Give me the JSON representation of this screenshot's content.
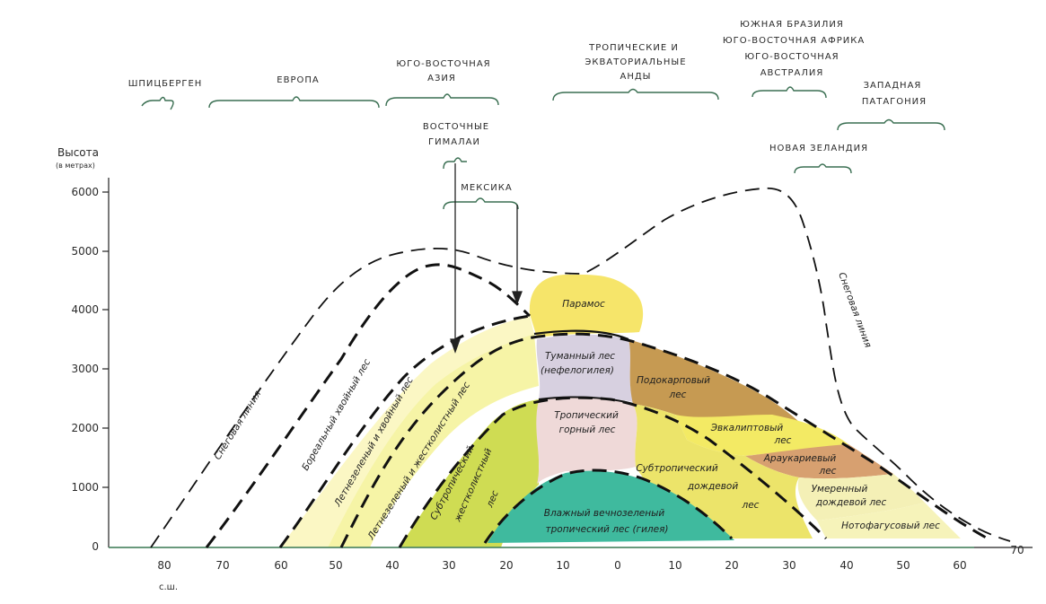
{
  "axes": {
    "y_title": "Высота",
    "y_unit": "(в метрах)",
    "y_ticks": [
      "6000",
      "5000",
      "4000",
      "3000",
      "2000",
      "1000",
      "0"
    ],
    "x_ticks": [
      "80",
      "70",
      "60",
      "50",
      "40",
      "30",
      "20",
      "10",
      "0",
      "10",
      "20",
      "30",
      "40",
      "50",
      "60",
      "70"
    ],
    "x_note": "с.ш."
  },
  "regions": {
    "spitsbergen": "ШПИЦБЕРГЕН",
    "europe": "ЕВРОПА",
    "se_asia_1": "ЮГО-ВОСТОЧНАЯ",
    "se_asia_2": "АЗИЯ",
    "andes_1": "ТРОПИЧЕСКИЕ И",
    "andes_2": "ЭКВАТОРИАЛЬНЫЕ",
    "andes_3": "АНДЫ",
    "south_1": "ЮЖНАЯ БРАЗИЛИЯ",
    "south_2": "ЮГО-ВОСТОЧНАЯ АФРИКА",
    "south_3": "ЮГО-ВОСТОЧНАЯ",
    "south_4": "АВСТРАЛИЯ",
    "patagonia_1": "ЗАПАДНАЯ",
    "patagonia_2": "ПАТАГОНИЯ",
    "himalaya_1": "ВОСТОЧНЫЕ",
    "himalaya_2": "ГИМАЛАИ",
    "mexico": "МЕКСИКА",
    "new_zealand": "НОВАЯ ЗЕЛАНДИЯ"
  },
  "zones": {
    "snow_line_left": "Снеговая линия",
    "snow_line_right": "Снеговая линия",
    "boreal": "Бореальный хвойный лес",
    "deciduous_conifer": "Летнезеленый и хвойный лес",
    "deciduous_sclerophyll": "Летнезеленый и жестколистный лес",
    "subtropical_sclero_1": "Субтропический",
    "subtropical_sclero_2": "жестколистный",
    "subtropical_sclero_3": "лес",
    "paramos": "Парамос",
    "cloud_1": "Туманный лес",
    "cloud_2": "(нефелогилея)",
    "tropical_mountain_1": "Тропический",
    "tropical_mountain_2": "горный лес",
    "hylaea_1": "Влажный вечнозеленый",
    "hylaea_2": "тропический лес (гилея)",
    "podocarp_1": "Подокарповый",
    "podocarp_2": "лес",
    "subtropical_rain_1": "Субтропический",
    "subtropical_rain_2": "дождевой",
    "subtropical_rain_3": "лес",
    "eucalypt_1": "Эвкалиптовый",
    "eucalypt_2": "лес",
    "araucaria_1": "Араукариевый",
    "araucaria_2": "лес",
    "temperate_rain_1": "Умеренный",
    "temperate_rain_2": "дождевой лес",
    "nothofagus": "Нотофагусовый лес"
  },
  "colors": {
    "boreal_band": "#fbf7c4",
    "deciduous_band": "#f6f4a6",
    "subtropical_sclero": "#cfdc53",
    "paramos": "#f6e56a",
    "cloud_forest": "#d7d0e0",
    "tropical_mountain": "#efd9d8",
    "hylaea": "#3fba9e",
    "podocarp": "#c69a52",
    "subtropical_rain": "#ece46a",
    "eucalypt": "#f3ea64",
    "araucaria": "#d7a070",
    "temperate_rain": "#f4f0b6",
    "nothofagus": "#f6f3ba",
    "bracket": "#3a6f52"
  }
}
